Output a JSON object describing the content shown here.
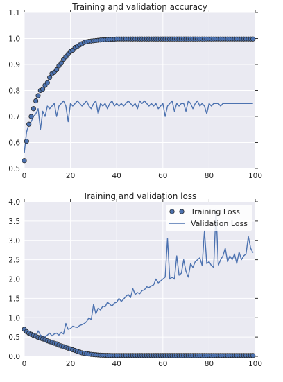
{
  "chart_data": [
    {
      "type": "line",
      "title": "Training and validation accuracy",
      "xlabel": "",
      "ylabel": "",
      "xlim": [
        0,
        100
      ],
      "ylim": [
        0.5,
        1.1
      ],
      "xticks": [
        "0",
        "20",
        "40",
        "60",
        "80",
        "100"
      ],
      "yticks": [
        "0.5",
        "0.6",
        "0.7",
        "0.8",
        "0.9",
        "1.0",
        "1.1"
      ],
      "grid": true,
      "legend": "none",
      "colors": {
        "background": "#eaeaf2",
        "series": "#4c72b0",
        "marker_edge": "#2a2a2a"
      },
      "series": [
        {
          "style": "markers",
          "x": [
            0,
            1,
            2,
            3,
            4,
            5,
            6,
            7,
            8,
            9,
            10,
            11,
            12,
            13,
            14,
            15,
            16,
            17,
            18,
            19,
            20,
            21,
            22,
            23,
            24,
            25,
            26,
            27,
            28,
            29,
            30,
            31,
            32,
            33,
            34,
            35,
            36,
            37,
            38,
            39,
            40,
            41,
            42,
            43,
            44,
            45,
            46,
            47,
            48,
            49,
            50,
            51,
            52,
            53,
            54,
            55,
            56,
            57,
            58,
            59,
            60,
            61,
            62,
            63,
            64,
            65,
            66,
            67,
            68,
            69,
            70,
            71,
            72,
            73,
            74,
            75,
            76,
            77,
            78,
            79,
            80,
            81,
            82,
            83,
            84,
            85,
            86,
            87,
            88,
            89,
            90,
            91,
            92,
            93,
            94,
            95,
            96,
            97,
            98,
            99
          ],
          "values": [
            0.53,
            0.605,
            0.67,
            0.7,
            0.73,
            0.76,
            0.78,
            0.8,
            0.805,
            0.82,
            0.83,
            0.85,
            0.865,
            0.87,
            0.88,
            0.895,
            0.905,
            0.92,
            0.93,
            0.94,
            0.95,
            0.955,
            0.965,
            0.97,
            0.975,
            0.98,
            0.985,
            0.987,
            0.989,
            0.99,
            0.991,
            0.992,
            0.993,
            0.994,
            0.995,
            0.995,
            0.996,
            0.996,
            0.997,
            0.997,
            0.998,
            0.998,
            0.998,
            0.998,
            0.998,
            0.998,
            0.998,
            0.998,
            0.998,
            0.998,
            0.998,
            0.998,
            0.998,
            0.998,
            0.998,
            0.998,
            0.998,
            0.998,
            0.998,
            0.998,
            0.998,
            0.998,
            0.998,
            0.998,
            0.998,
            0.998,
            0.998,
            0.998,
            0.998,
            0.998,
            0.998,
            0.998,
            0.998,
            0.998,
            0.998,
            0.998,
            0.998,
            0.998,
            0.998,
            0.998,
            0.998,
            0.998,
            0.998,
            0.998,
            0.998,
            0.998,
            0.998,
            0.998,
            0.998,
            0.998,
            0.998,
            0.998,
            0.998,
            0.998,
            0.998,
            0.998,
            0.998,
            0.998,
            0.998,
            0.998
          ]
        },
        {
          "style": "line",
          "x": [
            0,
            1,
            2,
            3,
            4,
            5,
            6,
            7,
            8,
            9,
            10,
            11,
            12,
            13,
            14,
            15,
            16,
            17,
            18,
            19,
            20,
            21,
            22,
            23,
            24,
            25,
            26,
            27,
            28,
            29,
            30,
            31,
            32,
            33,
            34,
            35,
            36,
            37,
            38,
            39,
            40,
            41,
            42,
            43,
            44,
            45,
            46,
            47,
            48,
            49,
            50,
            51,
            52,
            53,
            54,
            55,
            56,
            57,
            58,
            59,
            60,
            61,
            62,
            63,
            64,
            65,
            66,
            67,
            68,
            69,
            70,
            71,
            72,
            73,
            74,
            75,
            76,
            77,
            78,
            79,
            80,
            81,
            82,
            83,
            84,
            85,
            86,
            87,
            88,
            89,
            90,
            91,
            92,
            93,
            94,
            95,
            96,
            97,
            98,
            99
          ],
          "values": [
            0.56,
            0.64,
            0.67,
            0.68,
            0.7,
            0.71,
            0.73,
            0.65,
            0.72,
            0.7,
            0.74,
            0.73,
            0.74,
            0.75,
            0.7,
            0.74,
            0.75,
            0.76,
            0.74,
            0.68,
            0.75,
            0.74,
            0.75,
            0.76,
            0.75,
            0.74,
            0.75,
            0.76,
            0.74,
            0.73,
            0.75,
            0.76,
            0.71,
            0.75,
            0.74,
            0.75,
            0.73,
            0.75,
            0.76,
            0.74,
            0.75,
            0.74,
            0.75,
            0.74,
            0.75,
            0.76,
            0.75,
            0.74,
            0.75,
            0.73,
            0.76,
            0.75,
            0.76,
            0.75,
            0.74,
            0.75,
            0.74,
            0.75,
            0.73,
            0.74,
            0.75,
            0.7,
            0.74,
            0.75,
            0.76,
            0.72,
            0.75,
            0.74,
            0.75,
            0.75,
            0.72,
            0.76,
            0.75,
            0.73,
            0.75,
            0.76,
            0.74,
            0.75,
            0.74,
            0.71,
            0.75,
            0.74,
            0.75,
            0.75,
            0.75,
            0.74,
            0.75,
            0.75,
            0.75,
            0.75,
            0.75,
            0.75,
            0.75,
            0.75,
            0.75,
            0.75,
            0.75,
            0.75,
            0.75,
            0.75
          ]
        }
      ]
    },
    {
      "type": "line",
      "title": "Training and validation loss",
      "xlabel": "",
      "ylabel": "",
      "xlim": [
        0,
        100
      ],
      "ylim": [
        0.0,
        4.0
      ],
      "xticks": [
        "0",
        "20",
        "40",
        "60",
        "80",
        "100"
      ],
      "yticks": [
        "0.0",
        "0.5",
        "1.0",
        "1.5",
        "2.0",
        "2.5",
        "3.0",
        "3.5",
        "4.0"
      ],
      "grid": true,
      "legend": "top-right",
      "colors": {
        "background": "#eaeaf2",
        "series": "#4c72b0",
        "marker_edge": "#2a2a2a",
        "legend_bg": "#ffffff"
      },
      "series": [
        {
          "name": "Training Loss",
          "style": "markers",
          "x": [
            0,
            1,
            2,
            3,
            4,
            5,
            6,
            7,
            8,
            9,
            10,
            11,
            12,
            13,
            14,
            15,
            16,
            17,
            18,
            19,
            20,
            21,
            22,
            23,
            24,
            25,
            26,
            27,
            28,
            29,
            30,
            31,
            32,
            33,
            34,
            35,
            36,
            37,
            38,
            39,
            40,
            41,
            42,
            43,
            44,
            45,
            46,
            47,
            48,
            49,
            50,
            51,
            52,
            53,
            54,
            55,
            56,
            57,
            58,
            59,
            60,
            61,
            62,
            63,
            64,
            65,
            66,
            67,
            68,
            69,
            70,
            71,
            72,
            73,
            74,
            75,
            76,
            77,
            78,
            79,
            80,
            81,
            82,
            83,
            84,
            85,
            86,
            87,
            88,
            89,
            90,
            91,
            92,
            93,
            94,
            95,
            96,
            97,
            98,
            99
          ],
          "values": [
            0.7,
            0.64,
            0.6,
            0.57,
            0.54,
            0.52,
            0.49,
            0.47,
            0.45,
            0.43,
            0.4,
            0.38,
            0.36,
            0.34,
            0.32,
            0.29,
            0.27,
            0.25,
            0.23,
            0.21,
            0.19,
            0.17,
            0.15,
            0.13,
            0.11,
            0.09,
            0.08,
            0.07,
            0.06,
            0.05,
            0.045,
            0.04,
            0.035,
            0.03,
            0.028,
            0.026,
            0.024,
            0.022,
            0.02,
            0.02,
            0.02,
            0.02,
            0.02,
            0.02,
            0.02,
            0.02,
            0.02,
            0.02,
            0.02,
            0.02,
            0.02,
            0.02,
            0.02,
            0.02,
            0.02,
            0.02,
            0.02,
            0.02,
            0.02,
            0.02,
            0.02,
            0.02,
            0.02,
            0.02,
            0.02,
            0.02,
            0.02,
            0.02,
            0.02,
            0.02,
            0.02,
            0.02,
            0.02,
            0.02,
            0.02,
            0.02,
            0.02,
            0.02,
            0.02,
            0.02,
            0.02,
            0.02,
            0.02,
            0.02,
            0.02,
            0.02,
            0.02,
            0.02,
            0.02,
            0.02,
            0.02,
            0.02,
            0.02,
            0.02,
            0.02,
            0.02,
            0.02,
            0.02,
            0.02,
            0.02
          ]
        },
        {
          "name": "Validation Loss",
          "style": "line",
          "x": [
            0,
            1,
            2,
            3,
            4,
            5,
            6,
            7,
            8,
            9,
            10,
            11,
            12,
            13,
            14,
            15,
            16,
            17,
            18,
            19,
            20,
            21,
            22,
            23,
            24,
            25,
            26,
            27,
            28,
            29,
            30,
            31,
            32,
            33,
            34,
            35,
            36,
            37,
            38,
            39,
            40,
            41,
            42,
            43,
            44,
            45,
            46,
            47,
            48,
            49,
            50,
            51,
            52,
            53,
            54,
            55,
            56,
            57,
            58,
            59,
            60,
            61,
            62,
            63,
            64,
            65,
            66,
            67,
            68,
            69,
            70,
            71,
            72,
            73,
            74,
            75,
            76,
            77,
            78,
            79,
            80,
            81,
            82,
            83,
            84,
            85,
            86,
            87,
            88,
            89,
            90,
            91,
            92,
            93,
            94,
            95,
            96,
            97,
            98,
            99
          ],
          "values": [
            0.68,
            0.62,
            0.58,
            0.55,
            0.52,
            0.5,
            0.66,
            0.55,
            0.52,
            0.5,
            0.55,
            0.6,
            0.53,
            0.58,
            0.6,
            0.55,
            0.62,
            0.58,
            0.85,
            0.7,
            0.72,
            0.78,
            0.76,
            0.75,
            0.8,
            0.82,
            0.85,
            0.9,
            1.0,
            0.95,
            1.35,
            1.1,
            1.25,
            1.2,
            1.3,
            1.28,
            1.4,
            1.35,
            1.3,
            1.38,
            1.4,
            1.5,
            1.42,
            1.48,
            1.55,
            1.6,
            1.52,
            1.75,
            1.6,
            1.65,
            1.62,
            1.7,
            1.72,
            1.8,
            1.78,
            1.82,
            1.85,
            2.0,
            1.9,
            1.95,
            2.0,
            2.05,
            3.05,
            2.0,
            2.05,
            2.0,
            2.6,
            2.1,
            2.15,
            2.5,
            2.2,
            2.05,
            2.4,
            2.3,
            2.45,
            2.5,
            2.55,
            2.35,
            3.25,
            2.4,
            2.45,
            2.35,
            2.3,
            3.8,
            2.35,
            2.5,
            2.6,
            2.8,
            2.45,
            2.6,
            2.5,
            2.65,
            2.4,
            2.7,
            2.5,
            2.6,
            2.65,
            3.1,
            2.8,
            2.68
          ]
        }
      ]
    }
  ]
}
